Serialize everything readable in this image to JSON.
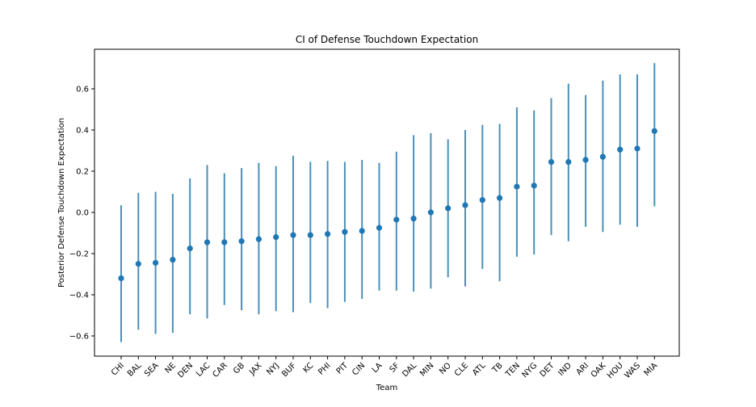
{
  "chart_data": {
    "type": "scatter",
    "title": "CI of Defense Touchdown Expectation",
    "xlabel": "Team",
    "ylabel": "Posterior Defense Touchdown Expectation",
    "ylim": [
      -0.7,
      0.8
    ],
    "yticks": [
      -0.6,
      -0.4,
      -0.2,
      0.0,
      0.2,
      0.4,
      0.6
    ],
    "ytick_labels": [
      "−0.6",
      "−0.4",
      "−0.2",
      "0.0",
      "0.2",
      "0.4",
      "0.6"
    ],
    "grid": false,
    "colors": {
      "point": "#1f77b4",
      "errorbar": "#4a90b8"
    },
    "categories": [
      "CHI",
      "BAL",
      "SEA",
      "NE",
      "DEN",
      "LAC",
      "CAR",
      "GB",
      "JAX",
      "NYJ",
      "BUF",
      "KC",
      "PHI",
      "PIT",
      "CIN",
      "LA",
      "SF",
      "DAL",
      "MIN",
      "NO",
      "CLE",
      "ATL",
      "TB",
      "TEN",
      "NYG",
      "DET",
      "IND",
      "ARI",
      "OAK",
      "HOU",
      "WAS",
      "MIA"
    ],
    "series": [
      {
        "values": [
          -0.32,
          -0.25,
          -0.245,
          -0.23,
          -0.175,
          -0.145,
          -0.145,
          -0.14,
          -0.13,
          -0.12,
          -0.11,
          -0.11,
          -0.105,
          -0.095,
          -0.09,
          -0.075,
          -0.035,
          -0.03,
          0.0,
          0.02,
          0.035,
          0.06,
          0.07,
          0.125,
          0.13,
          0.245,
          0.245,
          0.255,
          0.27,
          0.305,
          0.31,
          0.395
        ],
        "lower": [
          -0.63,
          -0.57,
          -0.59,
          -0.585,
          -0.495,
          -0.515,
          -0.45,
          -0.475,
          -0.495,
          -0.48,
          -0.485,
          -0.44,
          -0.465,
          -0.435,
          -0.42,
          -0.38,
          -0.38,
          -0.385,
          -0.37,
          -0.315,
          -0.36,
          -0.275,
          -0.335,
          -0.215,
          -0.205,
          -0.11,
          -0.14,
          -0.07,
          -0.095,
          -0.06,
          -0.07,
          0.03
        ],
        "upper": [
          0.035,
          0.095,
          0.1,
          0.09,
          0.165,
          0.23,
          0.19,
          0.215,
          0.24,
          0.225,
          0.275,
          0.245,
          0.25,
          0.245,
          0.255,
          0.24,
          0.295,
          0.375,
          0.385,
          0.355,
          0.4,
          0.425,
          0.43,
          0.51,
          0.495,
          0.555,
          0.625,
          0.57,
          0.64,
          0.67,
          0.67,
          0.725
        ]
      }
    ]
  }
}
